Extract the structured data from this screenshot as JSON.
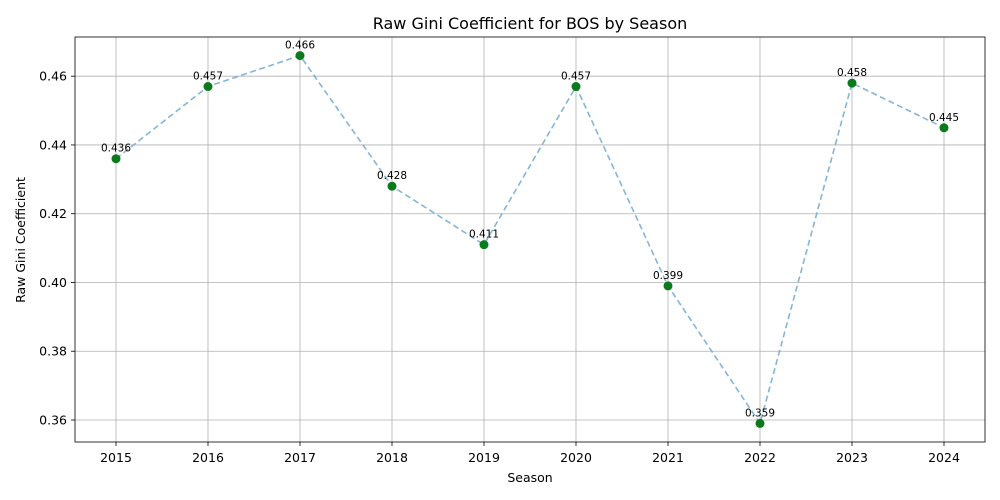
{
  "chart_data": {
    "type": "line",
    "title": "Raw Gini Coefficient for BOS by Season",
    "xlabel": "Season",
    "ylabel": "Raw Gini Coefficient",
    "categories": [
      "2015",
      "2016",
      "2017",
      "2018",
      "2019",
      "2020",
      "2021",
      "2022",
      "2023",
      "2024"
    ],
    "values": [
      0.436,
      0.457,
      0.466,
      0.428,
      0.411,
      0.457,
      0.399,
      0.359,
      0.458,
      0.445
    ],
    "value_labels": [
      "0.436",
      "0.457",
      "0.466",
      "0.428",
      "0.411",
      "0.457",
      "0.399",
      "0.359",
      "0.458",
      "0.445"
    ],
    "y_ticks": [
      0.36,
      0.38,
      0.4,
      0.42,
      0.44,
      0.46
    ],
    "y_tick_labels": [
      "0.36",
      "0.38",
      "0.40",
      "0.42",
      "0.44",
      "0.46"
    ],
    "ylim": [
      0.3536,
      0.4714
    ],
    "grid": true,
    "line_style": "dashed",
    "colors": {
      "marker": "#0a7a1c",
      "line": "#6fa8d2"
    }
  }
}
